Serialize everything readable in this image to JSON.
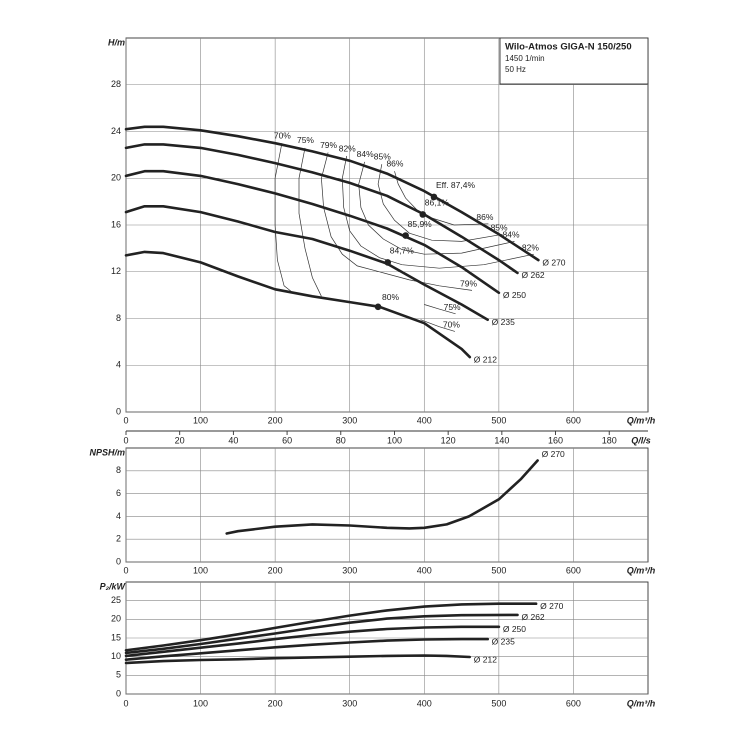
{
  "chart_data": [
    {
      "type": "line",
      "title": "Wilo-Atmos GIGA-N 150/250",
      "subtitle": [
        "1450 1/min",
        "50 Hz"
      ],
      "xlabel": "Q/m³/h",
      "ylabel": "H/m",
      "xlim": [
        0,
        700
      ],
      "xticks": [
        0,
        100,
        200,
        300,
        400,
        500,
        600
      ],
      "ylim": [
        0,
        32
      ],
      "yticks": [
        0,
        4,
        8,
        12,
        16,
        20,
        24,
        28
      ],
      "x2label": "Q/l/s",
      "x2lim": [
        0,
        194.44
      ],
      "x2ticks": [
        0,
        20,
        40,
        60,
        80,
        100,
        120,
        140,
        160,
        180
      ],
      "grid": true,
      "series": [
        {
          "name": "Ø 270",
          "color": "#222222",
          "x": [
            0,
            25,
            50,
            100,
            150,
            200,
            250,
            300,
            350,
            400,
            450,
            500,
            553
          ],
          "values": [
            24.2,
            24.4,
            24.4,
            24.1,
            23.6,
            23.0,
            22.3,
            21.5,
            20.4,
            18.9,
            17.1,
            15.2,
            13.0
          ]
        },
        {
          "name": "Ø 262",
          "color": "#222222",
          "x": [
            0,
            25,
            50,
            100,
            150,
            200,
            250,
            300,
            350,
            400,
            450,
            500,
            525
          ],
          "values": [
            22.6,
            22.9,
            22.9,
            22.6,
            22.0,
            21.3,
            20.5,
            19.6,
            18.5,
            16.9,
            15.0,
            13.0,
            11.9
          ]
        },
        {
          "name": "Ø 250",
          "color": "#222222",
          "x": [
            0,
            25,
            50,
            100,
            150,
            200,
            250,
            300,
            350,
            400,
            450,
            500
          ],
          "values": [
            20.2,
            20.6,
            20.6,
            20.2,
            19.5,
            18.7,
            17.8,
            16.8,
            15.7,
            14.3,
            12.4,
            10.2
          ]
        },
        {
          "name": "Ø 235",
          "color": "#222222",
          "x": [
            0,
            25,
            50,
            100,
            150,
            200,
            250,
            300,
            350,
            400,
            450,
            485
          ],
          "values": [
            17.1,
            17.6,
            17.6,
            17.1,
            16.3,
            15.4,
            14.8,
            13.8,
            12.7,
            10.9,
            9.2,
            7.9
          ]
        },
        {
          "name": "Ø 212",
          "color": "#222222",
          "x": [
            0,
            25,
            50,
            100,
            150,
            200,
            250,
            300,
            340,
            400,
            450,
            461
          ],
          "values": [
            13.4,
            13.7,
            13.6,
            12.8,
            11.6,
            10.5,
            9.9,
            9.4,
            9.0,
            7.6,
            5.4,
            4.7
          ]
        }
      ],
      "efficiency_curves": [
        {
          "name": "70%",
          "x": [
            209,
            200,
            200,
            203,
            212,
            222,
            null,
            395,
            420,
            441
          ],
          "values": [
            23.0,
            20,
            16,
            13,
            10.8,
            10.3,
            null,
            7.9,
            7.3,
            6.9
          ]
        },
        {
          "name": "75%",
          "x": [
            240,
            232,
            232,
            240,
            250,
            262,
            null,
            400,
            420,
            442
          ],
          "values": [
            22.6,
            20,
            17,
            14,
            11.5,
            9.9,
            null,
            9.2,
            8.8,
            8.4
          ]
        },
        {
          "name": "79%",
          "x": [
            271,
            262,
            265,
            275,
            290,
            310,
            340,
            380,
            420,
            464
          ],
          "values": [
            22.2,
            20,
            17.5,
            15,
            13.5,
            12.5,
            12.0,
            11.3,
            10.8,
            10.4
          ]
        },
        {
          "name": "82%",
          "x": [
            296,
            290,
            292,
            300,
            315,
            340,
            370,
            420,
            480,
            547
          ],
          "values": [
            21.9,
            20,
            17.5,
            15.5,
            14.2,
            13.2,
            12.6,
            12.3,
            12.6,
            13.5
          ]
        },
        {
          "name": "84%",
          "x": [
            320,
            312,
            315,
            325,
            345,
            370,
            400,
            450,
            521
          ],
          "values": [
            21.4,
            19.5,
            17.5,
            16,
            14.8,
            13.9,
            13.5,
            13.6,
            14.6
          ]
        },
        {
          "name": "85%",
          "x": [
            343,
            338,
            345,
            360,
            380,
            410,
            450,
            505
          ],
          "values": [
            21.2,
            19.5,
            17.8,
            16.4,
            15.3,
            14.7,
            14.6,
            15.2
          ]
        },
        {
          "name": "86%",
          "x": [
            360,
            365,
            375,
            390,
            410,
            440,
            486
          ],
          "values": [
            20.6,
            19.5,
            18.3,
            17.3,
            16.6,
            16.0,
            16.1
          ]
        }
      ],
      "best_points": [
        {
          "label": "Eff. 87,4%",
          "x": 413,
          "value": 18.4
        },
        {
          "label": "86,1%",
          "x": 398,
          "value": 16.9
        },
        {
          "label": "85,9%",
          "x": 375,
          "value": 15.1
        },
        {
          "label": "84,7%",
          "x": 351,
          "value": 12.8
        },
        {
          "label": "80%",
          "x": 338,
          "value": 9.0
        }
      ]
    },
    {
      "type": "line",
      "xlabel": "Q/m³/h",
      "ylabel": "NPSH/m",
      "xlim": [
        0,
        700
      ],
      "xticks": [
        0,
        100,
        200,
        300,
        400,
        500,
        600
      ],
      "ylim": [
        0,
        10
      ],
      "yticks": [
        0,
        2,
        4,
        6,
        8
      ],
      "grid": true,
      "series": [
        {
          "name": "Ø 270",
          "color": "#222222",
          "x": [
            135,
            150,
            200,
            250,
            300,
            350,
            380,
            400,
            430,
            460,
            500,
            530,
            552
          ],
          "values": [
            2.5,
            2.7,
            3.1,
            3.3,
            3.2,
            3.0,
            2.95,
            3.0,
            3.3,
            4.0,
            5.5,
            7.3,
            8.9
          ]
        }
      ]
    },
    {
      "type": "line",
      "xlabel": "Q/m³/h",
      "ylabel": "P₂/kW",
      "xlim": [
        0,
        700
      ],
      "xticks": [
        0,
        100,
        200,
        300,
        400,
        500,
        600
      ],
      "ylim": [
        0,
        30
      ],
      "yticks": [
        0,
        5,
        10,
        15,
        20,
        25
      ],
      "grid": true,
      "series": [
        {
          "name": "Ø 270",
          "color": "#222222",
          "x": [
            0,
            50,
            100,
            150,
            200,
            250,
            300,
            350,
            400,
            450,
            500,
            550
          ],
          "values": [
            11.7,
            13,
            14.4,
            16,
            17.7,
            19.4,
            21,
            22.4,
            23.4,
            24.0,
            24.2,
            24.2
          ]
        },
        {
          "name": "Ø 262",
          "color": "#222222",
          "x": [
            0,
            50,
            100,
            150,
            200,
            250,
            300,
            350,
            400,
            450,
            525
          ],
          "values": [
            11,
            12.1,
            13.4,
            14.8,
            16.2,
            17.7,
            19.1,
            20.2,
            20.8,
            21.1,
            21.2
          ]
        },
        {
          "name": "Ø 250",
          "color": "#222222",
          "x": [
            0,
            50,
            100,
            150,
            200,
            250,
            300,
            350,
            400,
            450,
            500
          ],
          "values": [
            10.2,
            11.3,
            12.4,
            13.5,
            14.7,
            15.8,
            16.7,
            17.4,
            17.8,
            18.0,
            18.0
          ]
        },
        {
          "name": "Ø 235",
          "color": "#222222",
          "x": [
            0,
            50,
            100,
            150,
            200,
            250,
            300,
            350,
            400,
            450,
            485
          ],
          "values": [
            9.2,
            10.1,
            10.9,
            11.7,
            12.5,
            13.2,
            13.8,
            14.3,
            14.6,
            14.7,
            14.7
          ]
        },
        {
          "name": "Ø 212",
          "color": "#222222",
          "x": [
            0,
            50,
            100,
            150,
            200,
            250,
            300,
            350,
            400,
            430,
            461
          ],
          "values": [
            8.3,
            8.8,
            9.1,
            9.3,
            9.6,
            9.8,
            10.0,
            10.2,
            10.3,
            10.2,
            9.9
          ]
        }
      ]
    }
  ]
}
